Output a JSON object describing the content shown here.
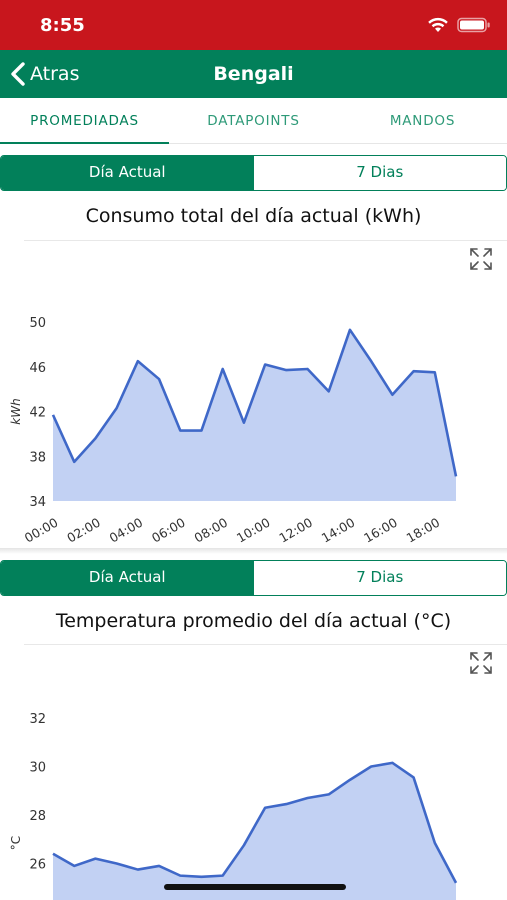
{
  "status_bar": {
    "time": "8:55",
    "icons": [
      "wifi-icon",
      "battery-icon"
    ]
  },
  "nav": {
    "back_label": "Atras",
    "title": "Bengali"
  },
  "tabs": [
    {
      "label": "PROMEDIADAS",
      "active": true
    },
    {
      "label": "DATAPOINTS",
      "active": false
    },
    {
      "label": "MANDOS",
      "active": false
    }
  ],
  "colors": {
    "status_red": "#c8161d",
    "brand_green": "#02805a",
    "series_line": "#3f68c8",
    "series_fill": "#c2d1f3"
  },
  "cards": [
    {
      "segment": {
        "option_a": "Día Actual",
        "option_b": "7 Dias",
        "selected": "Día Actual"
      },
      "title": "Consumo total del día actual (kWh)",
      "chart_data": {
        "type": "area",
        "ylabel": "kWh",
        "xlabel": "",
        "ylim": [
          34,
          50
        ],
        "yticks": [
          "34",
          "38",
          "42",
          "46",
          "50"
        ],
        "xticks": [
          "00:00",
          "02:00",
          "04:00",
          "06:00",
          "08:00",
          "10:00",
          "12:00",
          "14:00",
          "16:00",
          "18:00"
        ],
        "x": [
          0,
          1,
          2,
          3,
          4,
          5,
          6,
          7,
          8,
          9,
          10,
          11,
          12,
          13,
          14,
          15,
          16,
          17,
          18,
          19
        ],
        "values": [
          41.7,
          37.5,
          39.6,
          42.3,
          46.5,
          44.9,
          40.3,
          40.3,
          45.8,
          41.0,
          46.2,
          45.7,
          45.8,
          43.8,
          49.3,
          46.5,
          43.5,
          45.6,
          45.5,
          36.2
        ],
        "grid": false,
        "legend": "none"
      }
    },
    {
      "segment": {
        "option_a": "Día Actual",
        "option_b": "7 Dias",
        "selected": "Día Actual"
      },
      "title": "Temperatura promedio del día actual (°C)",
      "chart_data": {
        "type": "area",
        "ylabel": "°C",
        "xlabel": "",
        "ylim": [
          24,
          32
        ],
        "yticks": [
          "26",
          "28",
          "30",
          "32"
        ],
        "xticks": [],
        "x": [
          0,
          1,
          2,
          3,
          4,
          5,
          6,
          7,
          8,
          9,
          10,
          11,
          12,
          13,
          14,
          15,
          16,
          17,
          18,
          19
        ],
        "values": [
          26.4,
          25.9,
          26.2,
          26.0,
          25.75,
          25.9,
          25.5,
          25.45,
          25.5,
          26.75,
          28.3,
          28.45,
          28.7,
          28.85,
          29.45,
          30.0,
          30.15,
          29.55,
          26.85,
          25.2
        ],
        "grid": false,
        "legend": "none"
      }
    }
  ]
}
